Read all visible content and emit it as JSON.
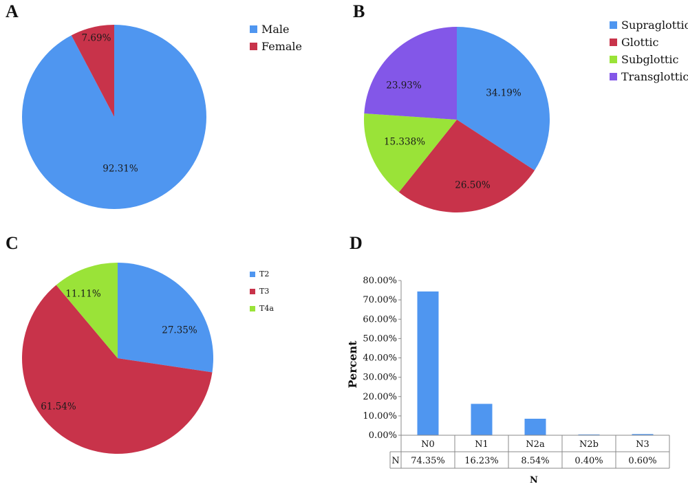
{
  "panels": {
    "a": "A",
    "b": "B",
    "c": "C",
    "d": "D"
  },
  "chart_data": [
    {
      "type": "pie",
      "labels": [
        "Male",
        "Female"
      ],
      "values": [
        92.31,
        7.69
      ],
      "value_labels": [
        "92.31%",
        "7.69%"
      ],
      "colors": [
        "#4f96f0",
        "#c8334a"
      ],
      "legend_position": "top-right"
    },
    {
      "type": "pie",
      "labels": [
        "Supraglottic",
        "Glottic",
        "Subglottic",
        "Transglottic"
      ],
      "values": [
        34.19,
        26.5,
        15.338,
        23.93
      ],
      "value_labels": [
        "34.19%",
        "26.50%",
        "15.338%",
        "23.93%"
      ],
      "colors": [
        "#4f96f0",
        "#c8334a",
        "#9ae338",
        "#8357e8"
      ],
      "legend_position": "top-right"
    },
    {
      "type": "pie",
      "labels": [
        "T2",
        "T3",
        "T4a"
      ],
      "values": [
        27.35,
        61.54,
        11.11
      ],
      "value_labels": [
        "27.35%",
        "61.54%",
        "11.11%"
      ],
      "colors": [
        "#4f96f0",
        "#c8334a",
        "#9ae338"
      ],
      "legend_position": "top-right"
    },
    {
      "type": "bar",
      "categories": [
        "N0",
        "N1",
        "N2a",
        "N2b",
        "N3"
      ],
      "series": [
        {
          "name": "N",
          "values": [
            74.35,
            16.23,
            8.54,
            0.4,
            0.6
          ],
          "value_labels": [
            "74.35%",
            "16.23%",
            "8.54%",
            "0.40%",
            "0.60%"
          ],
          "color": "#4f96f0"
        }
      ],
      "ylabel": "Percent",
      "xlabel": "N",
      "ylim": [
        0,
        80
      ],
      "yticks": [
        "0.00%",
        "10.00%",
        "20.00%",
        "30.00%",
        "40.00%",
        "50.00%",
        "60.00%",
        "70.00%",
        "80.00%"
      ],
      "grid": false,
      "data_table": true
    }
  ]
}
